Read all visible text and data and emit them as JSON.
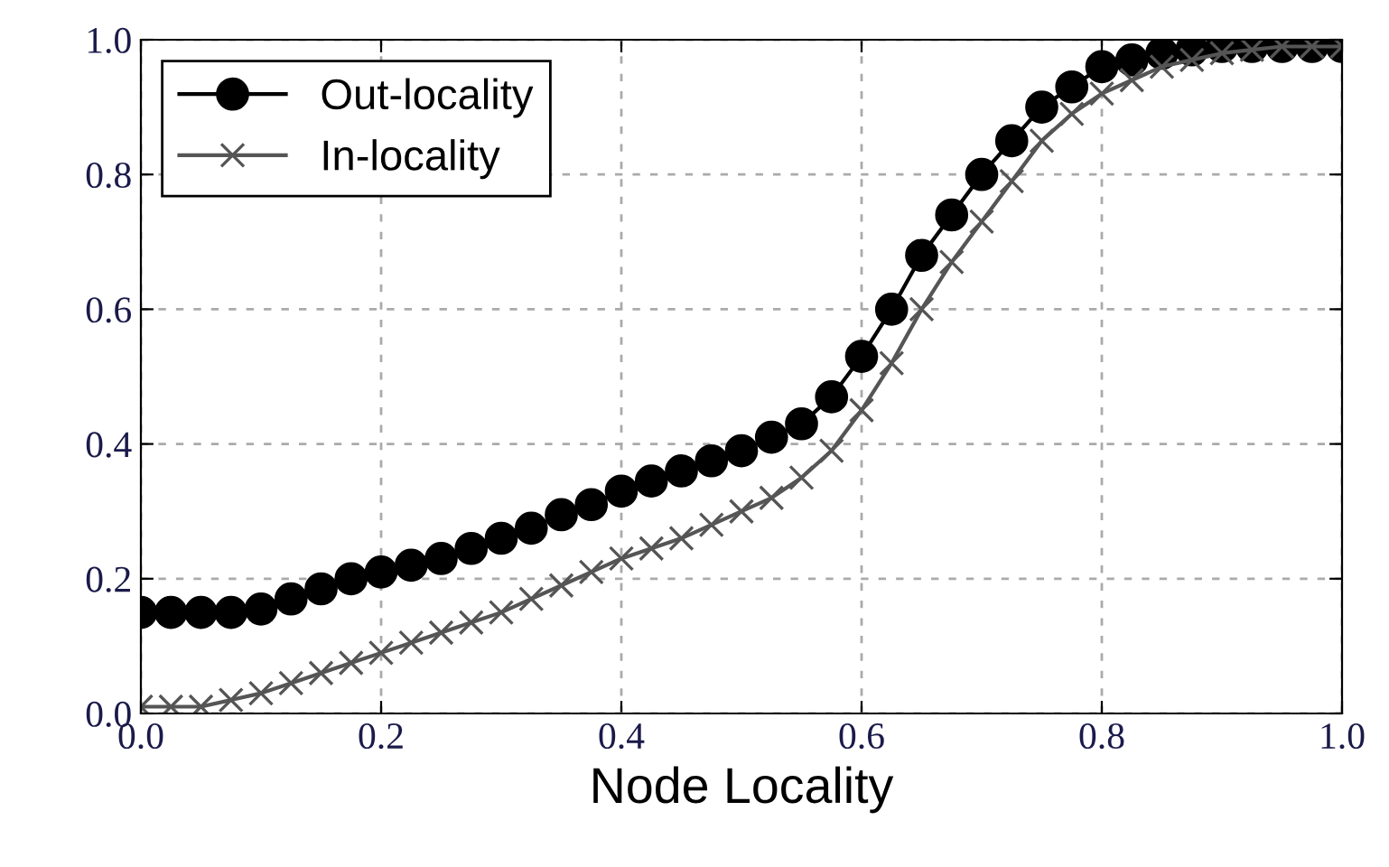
{
  "chart_data": {
    "type": "line",
    "xlabel": "Node Locality",
    "xlim": [
      0.0,
      1.0
    ],
    "ylim": [
      0.0,
      1.0
    ],
    "xticks": [
      {
        "value": 0.0,
        "label": "0.0"
      },
      0.2,
      0.4,
      0.6,
      0.8,
      {
        "value": 1.0,
        "label": "1.0"
      }
    ],
    "yticks": [
      {
        "value": 0.0,
        "label": "0.0"
      },
      0.2,
      0.4,
      0.6,
      0.8,
      {
        "value": 1.0,
        "label": "1.0"
      }
    ],
    "grid": true,
    "legend": "top left",
    "series": [
      {
        "name": "Out-locality",
        "color": "#000000",
        "marker": "circle",
        "x": [
          0,
          0.025,
          0.05,
          0.075,
          0.1,
          0.125,
          0.15,
          0.175,
          0.2,
          0.225,
          0.25,
          0.275,
          0.3,
          0.325,
          0.35,
          0.375,
          0.4,
          0.425,
          0.45,
          0.475,
          0.5,
          0.525,
          0.55,
          0.575,
          0.6,
          0.625,
          0.65,
          0.675,
          0.7,
          0.725,
          0.75,
          0.775,
          0.8,
          0.825,
          0.85,
          0.875,
          0.9,
          0.925,
          0.95,
          0.975,
          1.0
        ],
        "values": [
          0.15,
          0.15,
          0.15,
          0.15,
          0.155,
          0.17,
          0.185,
          0.2,
          0.21,
          0.22,
          0.23,
          0.245,
          0.26,
          0.275,
          0.295,
          0.31,
          0.33,
          0.345,
          0.36,
          0.375,
          0.39,
          0.41,
          0.43,
          0.47,
          0.53,
          0.6,
          0.68,
          0.74,
          0.8,
          0.85,
          0.9,
          0.93,
          0.96,
          0.97,
          0.98,
          0.985,
          0.99,
          0.99,
          0.99,
          0.99,
          0.99
        ]
      },
      {
        "name": "In-locality",
        "color": "#555555",
        "marker": "cross",
        "x": [
          0,
          0.025,
          0.05,
          0.075,
          0.1,
          0.125,
          0.15,
          0.175,
          0.2,
          0.225,
          0.25,
          0.275,
          0.3,
          0.325,
          0.35,
          0.375,
          0.4,
          0.425,
          0.45,
          0.475,
          0.5,
          0.525,
          0.55,
          0.575,
          0.6,
          0.625,
          0.65,
          0.675,
          0.7,
          0.725,
          0.75,
          0.775,
          0.8,
          0.825,
          0.85,
          0.875,
          0.9,
          0.925,
          0.95,
          0.975,
          1.0
        ],
        "values": [
          0.01,
          0.01,
          0.01,
          0.02,
          0.03,
          0.045,
          0.06,
          0.075,
          0.09,
          0.105,
          0.12,
          0.135,
          0.15,
          0.17,
          0.19,
          0.21,
          0.23,
          0.245,
          0.26,
          0.28,
          0.3,
          0.32,
          0.35,
          0.39,
          0.45,
          0.52,
          0.6,
          0.67,
          0.73,
          0.79,
          0.85,
          0.89,
          0.92,
          0.94,
          0.96,
          0.97,
          0.98,
          0.985,
          0.99,
          0.99,
          0.99
        ]
      }
    ]
  }
}
